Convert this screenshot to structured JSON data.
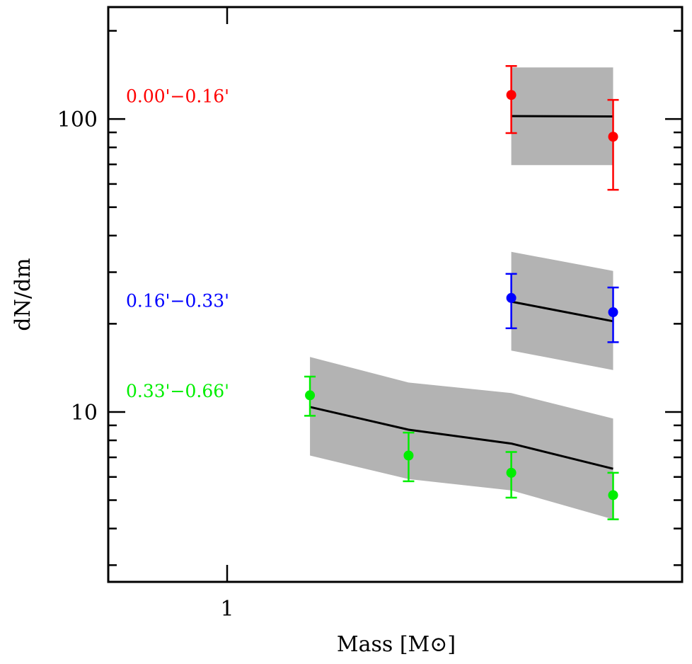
{
  "chart_data": {
    "type": "scatter",
    "title": "",
    "xlabel": "Mass [M⊙]",
    "ylabel": "dN/dm",
    "xscale": "log",
    "yscale": "log",
    "xlim": [
      0.65,
      5.2
    ],
    "ylim": [
      2.63,
      241
    ],
    "grid": false,
    "legend": "in-plot text labels, left side",
    "x_ticks": [
      {
        "value": 1,
        "label": "1"
      }
    ],
    "y_ticks": [
      {
        "value": 10,
        "label": "10"
      },
      {
        "value": 100,
        "label": "100"
      }
    ],
    "series": [
      {
        "name": "0.00'−0.16'",
        "color": "#ff0000",
        "label_anchor_value": 120,
        "points": [
          {
            "x": 2.8,
            "y": 120.8,
            "err_low": 89.5,
            "err_high": 151.7
          },
          {
            "x": 4.05,
            "y": 87.0,
            "err_low": 57.3,
            "err_high": 116.2
          }
        ],
        "model": {
          "x": [
            2.8,
            4.05
          ],
          "line": [
            102.3,
            102.0
          ],
          "band_low": [
            69.6,
            69.6
          ],
          "band_high": [
            150.0,
            150.0
          ]
        }
      },
      {
        "name": "0.16'−0.33'",
        "color": "#0000ff",
        "label_anchor_value": 24,
        "points": [
          {
            "x": 2.8,
            "y": 24.5,
            "err_low": 19.3,
            "err_high": 29.6
          },
          {
            "x": 4.05,
            "y": 21.9,
            "err_low": 17.3,
            "err_high": 26.6
          }
        ],
        "model": {
          "x": [
            2.8,
            4.05
          ],
          "line": [
            23.8,
            20.4
          ],
          "band_low": [
            16.2,
            13.9
          ],
          "band_high": [
            35.2,
            30.3
          ]
        }
      },
      {
        "name": "0.33'−0.66'",
        "color": "#00ee00",
        "label_anchor_value": 11.8,
        "points": [
          {
            "x": 1.35,
            "y": 11.4,
            "err_low": 9.7,
            "err_high": 13.2
          },
          {
            "x": 1.93,
            "y": 7.1,
            "err_low": 5.8,
            "err_high": 8.5
          },
          {
            "x": 2.8,
            "y": 6.2,
            "err_low": 5.1,
            "err_high": 7.3
          },
          {
            "x": 4.05,
            "y": 5.2,
            "err_low": 4.3,
            "err_high": 6.2
          }
        ],
        "model": {
          "x": [
            1.35,
            1.93,
            2.8,
            4.05
          ],
          "line": [
            10.4,
            8.7,
            7.8,
            6.4
          ],
          "band_low": [
            7.1,
            5.9,
            5.4,
            4.3
          ],
          "band_high": [
            15.4,
            12.6,
            11.6,
            9.5
          ]
        }
      }
    ],
    "band_color": "#b3b3b3",
    "model_line_color": "#000000"
  }
}
